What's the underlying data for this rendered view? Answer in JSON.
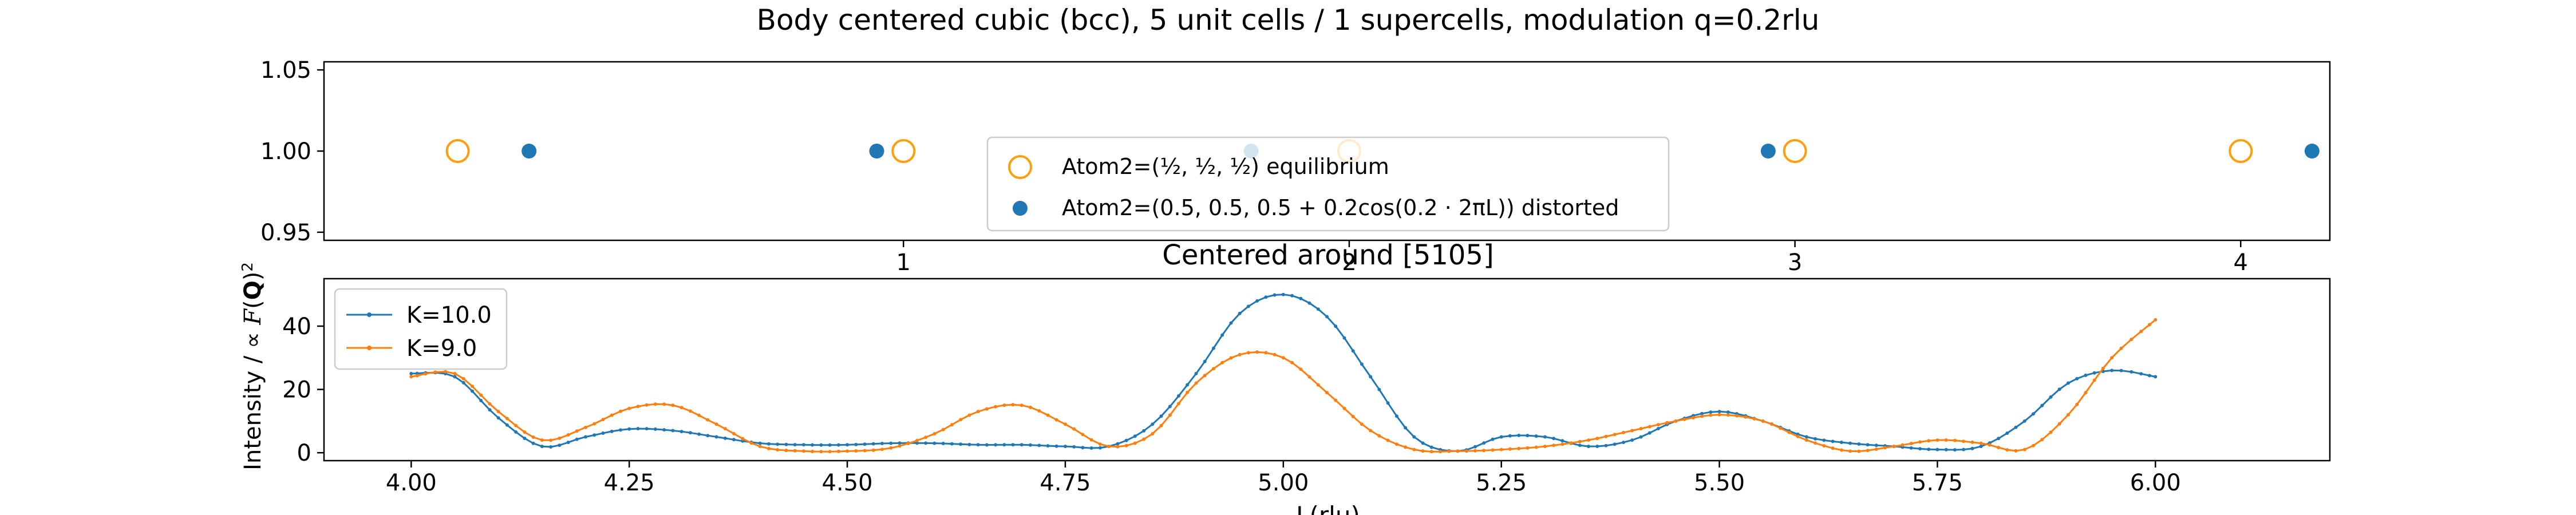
{
  "figure_title": "Body centered cubic (bcc), 5 unit cells / 1 supercells, modulation q=0.2rlu",
  "colors": {
    "equilibrium": "#ff9f0e",
    "distorted": "#1f77b4",
    "k10": "#1f77b4",
    "k9": "#ff7f0e"
  },
  "chart_data": [
    {
      "type": "scatter",
      "title": "",
      "xlabel": "",
      "ylabel": "",
      "xlim": [
        -0.3,
        4.2
      ],
      "ylim": [
        0.945,
        1.055
      ],
      "xticks": [
        1,
        2,
        3,
        4
      ],
      "xtick_labels": [
        "1",
        "2",
        "3",
        "4"
      ],
      "yticks": [
        0.95,
        1.0,
        1.05
      ],
      "ytick_labels": [
        "0.95",
        "1.00",
        "1.05"
      ],
      "legend_placement": "lower-center",
      "series": [
        {
          "name": "Atom2=(½,½,½) equilibrium",
          "legend_prefix": "Atom2=",
          "legend_suffix": " equilibrium",
          "marker": "open-circle",
          "x": [
            0.0,
            1.0,
            2.0,
            3.0,
            4.0
          ],
          "y": [
            1.0,
            1.0,
            1.0,
            1.0,
            1.0
          ]
        },
        {
          "name": "Atom2=(0.5, 0.5, 0.5 + 0.2cos(0.2·2πL)) distorted",
          "legend_text": "Atom2=(0.5, 0.5, 0.5 + 0.2cos(0.2 · 2πL)) distorted",
          "marker": "filled-circle",
          "x": [
            0.16,
            0.94,
            1.78,
            2.94,
            4.16
          ],
          "y": [
            1.0,
            1.0,
            1.0,
            1.0,
            1.0
          ]
        }
      ]
    },
    {
      "type": "line",
      "title": "Centered around [5105]",
      "xlabel": "L(rlu)",
      "ylabel": "Intensity / ∝ F(Q)²",
      "xlim": [
        3.9,
        6.2
      ],
      "ylim": [
        -2.5,
        55
      ],
      "xticks": [
        4.0,
        4.25,
        4.5,
        4.75,
        5.0,
        5.25,
        5.5,
        5.75,
        6.0
      ],
      "xtick_labels": [
        "4.00",
        "4.25",
        "4.50",
        "4.75",
        "5.00",
        "5.25",
        "5.50",
        "5.75",
        "6.00"
      ],
      "yticks": [
        0,
        20,
        40
      ],
      "ytick_labels": [
        "0",
        "20",
        "40"
      ],
      "legend_placement": "upper-left",
      "series": [
        {
          "name": "K=10.0",
          "x": [
            4.0,
            4.05,
            4.1,
            4.15,
            4.2,
            4.25,
            4.3,
            4.35,
            4.4,
            4.45,
            4.5,
            4.55,
            4.6,
            4.65,
            4.7,
            4.75,
            4.8,
            4.85,
            4.9,
            4.95,
            5.0,
            5.05,
            5.1,
            5.15,
            5.2,
            5.25,
            5.3,
            5.35,
            5.4,
            5.45,
            5.5,
            5.55,
            5.6,
            5.65,
            5.7,
            5.75,
            5.8,
            5.85,
            5.9,
            5.95,
            6.0
          ],
          "y": [
            25,
            24,
            11,
            2,
            5,
            7.5,
            7,
            5,
            3,
            2.5,
            2.5,
            3,
            3,
            2.5,
            2.5,
            2,
            2,
            9,
            25,
            44,
            50,
            43,
            24,
            5,
            0.5,
            5,
            5,
            2,
            4,
            10,
            13,
            10,
            5,
            3,
            2,
            1,
            2,
            10,
            22,
            26,
            24
          ]
        },
        {
          "name": "K=9.0",
          "x": [
            4.0,
            4.05,
            4.1,
            4.15,
            4.2,
            4.25,
            4.3,
            4.35,
            4.4,
            4.45,
            4.5,
            4.55,
            4.6,
            4.65,
            4.7,
            4.75,
            4.8,
            4.85,
            4.9,
            4.95,
            5.0,
            5.05,
            5.1,
            5.15,
            5.2,
            5.25,
            5.3,
            5.35,
            5.4,
            5.45,
            5.5,
            5.55,
            5.6,
            5.65,
            5.7,
            5.75,
            5.8,
            5.85,
            5.9,
            5.95,
            6.0
          ],
          "y": [
            24,
            25,
            13,
            4,
            8,
            14,
            15,
            9,
            2,
            0.5,
            0.5,
            1.5,
            6,
            13,
            15,
            9,
            2,
            6,
            22,
            31,
            30,
            19,
            7,
            1,
            0.5,
            1,
            2,
            4,
            7,
            10,
            12,
            10,
            4,
            0.5,
            2,
            4,
            3,
            1,
            12,
            30,
            42
          ]
        }
      ]
    }
  ]
}
